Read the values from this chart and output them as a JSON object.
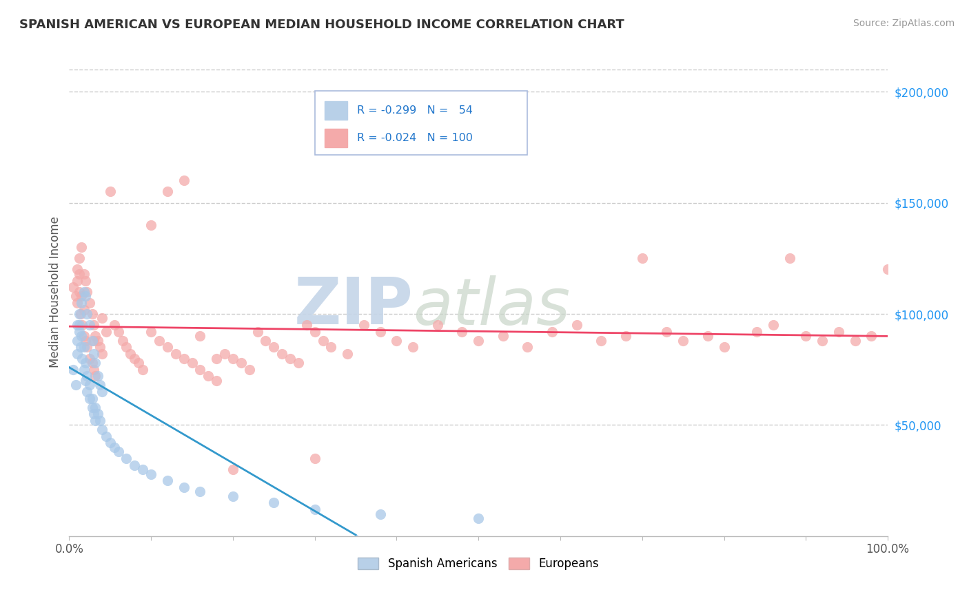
{
  "title": "SPANISH AMERICAN VS EUROPEAN MEDIAN HOUSEHOLD INCOME CORRELATION CHART",
  "source": "Source: ZipAtlas.com",
  "ylabel": "Median Household Income",
  "xlim": [
    0,
    1
  ],
  "ylim": [
    0,
    220000
  ],
  "series1_color": "#a8c8e8",
  "series2_color": "#f4aaaa",
  "trend1_color": "#3399cc",
  "trend2_color": "#ee4466",
  "trend1_dash_color": "#aaccee",
  "watermark_color": "#d0dff0",
  "background_color": "#ffffff",
  "grid_color": "#cccccc",
  "title_color": "#333333",
  "axis_label_color": "#555555",
  "ytick_label_color": "#2196F3",
  "legend_box_color": "#e8eef8",
  "legend_border_color": "#aabbcc",
  "spanish_americans": {
    "x": [
      0.005,
      0.008,
      0.01,
      0.012,
      0.015,
      0.018,
      0.02,
      0.022,
      0.025,
      0.028,
      0.03,
      0.032,
      0.035,
      0.038,
      0.04,
      0.01,
      0.012,
      0.014,
      0.016,
      0.018,
      0.02,
      0.022,
      0.025,
      0.028,
      0.03,
      0.032,
      0.01,
      0.012,
      0.015,
      0.018,
      0.02,
      0.022,
      0.025,
      0.028,
      0.032,
      0.035,
      0.038,
      0.04,
      0.045,
      0.05,
      0.055,
      0.06,
      0.07,
      0.08,
      0.09,
      0.1,
      0.12,
      0.14,
      0.16,
      0.2,
      0.25,
      0.3,
      0.38,
      0.5
    ],
    "y": [
      75000,
      68000,
      82000,
      95000,
      105000,
      110000,
      108000,
      100000,
      95000,
      88000,
      82000,
      78000,
      72000,
      68000,
      65000,
      88000,
      92000,
      85000,
      80000,
      75000,
      70000,
      65000,
      62000,
      58000,
      55000,
      52000,
      95000,
      100000,
      90000,
      85000,
      78000,
      72000,
      68000,
      62000,
      58000,
      55000,
      52000,
      48000,
      45000,
      42000,
      40000,
      38000,
      35000,
      32000,
      30000,
      28000,
      25000,
      22000,
      20000,
      18000,
      15000,
      12000,
      10000,
      8000
    ]
  },
  "europeans": {
    "x": [
      0.005,
      0.008,
      0.01,
      0.012,
      0.015,
      0.018,
      0.02,
      0.022,
      0.025,
      0.028,
      0.03,
      0.032,
      0.035,
      0.038,
      0.04,
      0.01,
      0.012,
      0.014,
      0.016,
      0.018,
      0.02,
      0.022,
      0.025,
      0.028,
      0.03,
      0.032,
      0.01,
      0.012,
      0.015,
      0.018,
      0.055,
      0.06,
      0.065,
      0.07,
      0.075,
      0.08,
      0.085,
      0.09,
      0.1,
      0.11,
      0.12,
      0.13,
      0.14,
      0.15,
      0.16,
      0.17,
      0.18,
      0.19,
      0.2,
      0.21,
      0.22,
      0.23,
      0.24,
      0.25,
      0.26,
      0.27,
      0.28,
      0.29,
      0.3,
      0.31,
      0.32,
      0.34,
      0.36,
      0.38,
      0.4,
      0.42,
      0.45,
      0.48,
      0.5,
      0.53,
      0.56,
      0.59,
      0.62,
      0.65,
      0.68,
      0.7,
      0.73,
      0.75,
      0.78,
      0.8,
      0.84,
      0.86,
      0.88,
      0.9,
      0.92,
      0.94,
      0.96,
      0.98,
      1.0,
      0.03,
      0.04,
      0.045,
      0.05,
      0.3,
      0.2,
      0.18,
      0.16,
      0.14,
      0.12,
      0.1
    ],
    "y": [
      112000,
      108000,
      120000,
      125000,
      130000,
      118000,
      115000,
      110000,
      105000,
      100000,
      95000,
      90000,
      88000,
      85000,
      82000,
      105000,
      110000,
      100000,
      95000,
      90000,
      88000,
      85000,
      80000,
      78000,
      75000,
      72000,
      115000,
      118000,
      108000,
      102000,
      95000,
      92000,
      88000,
      85000,
      82000,
      80000,
      78000,
      75000,
      92000,
      88000,
      85000,
      82000,
      80000,
      78000,
      75000,
      72000,
      70000,
      82000,
      80000,
      78000,
      75000,
      92000,
      88000,
      85000,
      82000,
      80000,
      78000,
      95000,
      92000,
      88000,
      85000,
      82000,
      95000,
      92000,
      88000,
      85000,
      95000,
      92000,
      88000,
      90000,
      85000,
      92000,
      95000,
      88000,
      90000,
      125000,
      92000,
      88000,
      90000,
      85000,
      92000,
      95000,
      125000,
      90000,
      88000,
      92000,
      88000,
      90000,
      120000,
      88000,
      98000,
      92000,
      155000,
      35000,
      30000,
      80000,
      90000,
      160000,
      155000,
      140000
    ]
  }
}
